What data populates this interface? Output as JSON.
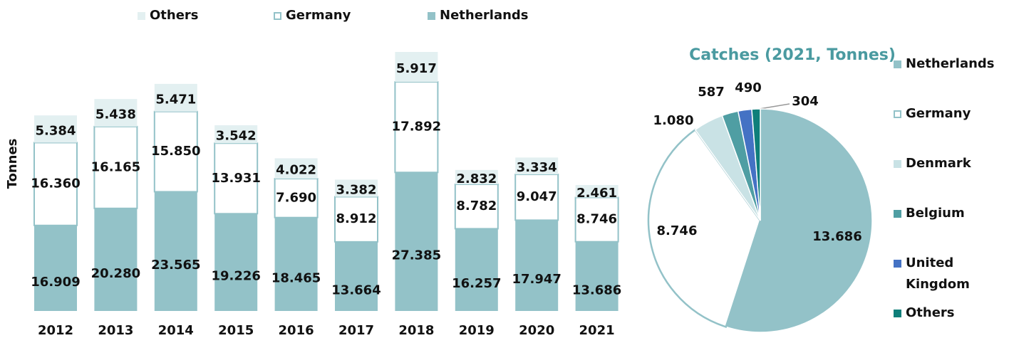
{
  "chart_data": [
    {
      "type": "bar",
      "stacked": true,
      "y_label": "Tonnes",
      "categories": [
        "2012",
        "2013",
        "2014",
        "2015",
        "2016",
        "2017",
        "2018",
        "2019",
        "2020",
        "2021"
      ],
      "series": [
        {
          "name": "Netherlands",
          "color": "#93c2c8",
          "values": [
            16909,
            20280,
            23565,
            19226,
            18465,
            13664,
            27385,
            16257,
            17947,
            13686
          ],
          "value_labels": [
            "16.909",
            "20.280",
            "23.565",
            "19.226",
            "18.465",
            "13.664",
            "27.385",
            "16.257",
            "17.947",
            "13.686"
          ]
        },
        {
          "name": "Germany",
          "color": "#ffffff",
          "edgecolor": "#93c2c8",
          "values": [
            16360,
            16165,
            15850,
            13931,
            7690,
            8912,
            17892,
            8782,
            9047,
            8746
          ],
          "value_labels": [
            "16.360",
            "16.165",
            "15.850",
            "13.931",
            "7.690",
            "8.912",
            "17.892",
            "8.782",
            "9.047",
            "8.746"
          ]
        },
        {
          "name": "Others",
          "color": "#e3f0f1",
          "values": [
            5384,
            5438,
            5471,
            3542,
            4022,
            3382,
            5917,
            2832,
            3334,
            2461
          ],
          "value_labels": [
            "5.384",
            "5.438",
            "5.471",
            "3.542",
            "4.022",
            "3.382",
            "5.917",
            "2.832",
            "3.334",
            "2.461"
          ]
        }
      ]
    },
    {
      "type": "pie",
      "title": "Catches (2021, Tonnes)",
      "categories": [
        "Netherlands",
        "Germany",
        "Denmark",
        "Belgium",
        "United Kingdom",
        "Others"
      ],
      "values": [
        13686,
        8746,
        1080,
        587,
        490,
        304
      ],
      "value_labels": [
        "13.686",
        "8.746",
        "1.080",
        "587",
        "490",
        "304"
      ],
      "colors": [
        "#93c2c8",
        "#ffffff",
        "#c9e2e5",
        "#4f9ea3",
        "#4472c4",
        "#0f7f7a"
      ],
      "edgecolor": "#93c2c8"
    }
  ]
}
